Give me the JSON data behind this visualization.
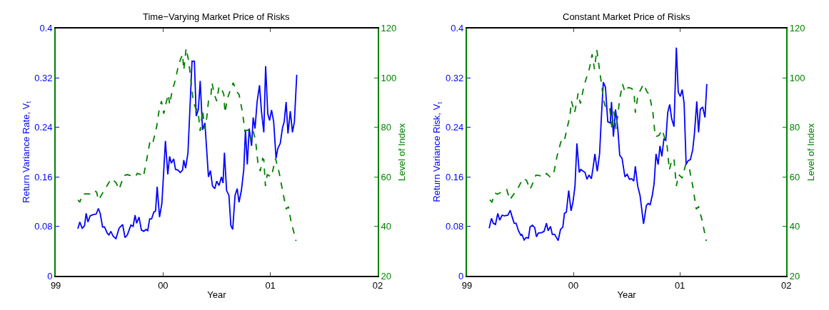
{
  "chart_data": [
    {
      "type": "line",
      "title": "Time−Varying Market Price of Risks",
      "xlabel": "Year",
      "ylabel": "Return Variance Rate, V$_{t}$",
      "y2label": "Level of Index",
      "xlim": [
        1999,
        2002
      ],
      "xticks": [
        {
          "value": 1999,
          "label": "99"
        },
        {
          "value": 2000,
          "label": "00"
        },
        {
          "value": 2001,
          "label": "01"
        },
        {
          "value": 2002,
          "label": "02"
        }
      ],
      "ylim": [
        0,
        0.4
      ],
      "yticks": [
        0,
        0.08,
        0.16,
        0.24,
        0.32,
        0.4
      ],
      "y2lim": [
        20,
        120
      ],
      "y2ticks": [
        20,
        40,
        60,
        80,
        100,
        120
      ],
      "series": [
        {
          "color": "#0000ff",
          "line_style": "solid",
          "x": [
            1999.206,
            1999.224,
            1999.246,
            1999.268,
            1999.283,
            1999.3,
            1999.32,
            1999.349,
            1999.377,
            1999.397,
            1999.414,
            1999.436,
            1999.454,
            1999.48,
            1999.496,
            1999.513,
            1999.535,
            1999.561,
            1999.59,
            1999.623,
            1999.645,
            1999.667,
            1999.7,
            1999.721,
            1999.739,
            1999.754,
            1999.776,
            1999.798,
            1999.82,
            1999.842,
            1999.857,
            1999.875,
            1999.893,
            1999.914,
            1999.93,
            1999.945,
            1999.967,
            1999.989,
            2000.022,
            2000.044,
            2000.061,
            2000.077,
            2000.099,
            2000.116,
            2000.138,
            2000.16,
            2000.182,
            2000.193,
            2000.21,
            2000.232,
            2000.27,
            2000.292,
            2000.309,
            2000.329,
            2000.346,
            2000.368,
            2000.39,
            2000.423,
            2000.441,
            2000.461,
            2000.482,
            2000.5,
            2000.522,
            2000.544,
            2000.559,
            2000.572,
            2000.592,
            2000.614,
            2000.632,
            2000.649,
            2000.671,
            2000.691,
            2000.708,
            2000.73,
            2000.752,
            2000.768,
            2000.785,
            2000.803,
            2000.825,
            2000.84,
            2000.857,
            2000.877,
            2000.899,
            2000.917,
            2000.939,
            2000.956,
            2000.976,
            2000.993,
            2001.011,
            2001.031,
            2001.053,
            2001.07,
            2001.092,
            2001.114,
            2001.129,
            2001.147,
            2001.164,
            2001.186,
            2001.206,
            2001.224,
            2001.246
          ],
          "values": [
            0.076,
            0.087,
            0.077,
            0.081,
            0.101,
            0.087,
            0.097,
            0.099,
            0.1,
            0.109,
            0.101,
            0.079,
            0.079,
            0.069,
            0.066,
            0.072,
            0.064,
            0.06,
            0.077,
            0.083,
            0.062,
            0.066,
            0.082,
            0.08,
            0.098,
            0.085,
            0.095,
            0.074,
            0.072,
            0.075,
            0.073,
            0.092,
            0.092,
            0.103,
            0.105,
            0.144,
            0.095,
            0.117,
            0.218,
            0.164,
            0.193,
            0.182,
            0.189,
            0.172,
            0.171,
            0.167,
            0.171,
            0.187,
            0.174,
            0.199,
            0.347,
            0.347,
            0.258,
            0.269,
            0.315,
            0.236,
            0.247,
            0.16,
            0.17,
            0.145,
            0.141,
            0.153,
            0.146,
            0.16,
            0.15,
            0.199,
            0.138,
            0.13,
            0.081,
            0.075,
            0.13,
            0.141,
            0.119,
            0.138,
            0.171,
            0.236,
            0.18,
            0.238,
            0.21,
            0.256,
            0.238,
            0.282,
            0.308,
            0.266,
            0.232,
            0.339,
            0.262,
            0.251,
            0.268,
            0.249,
            0.19,
            0.206,
            0.214,
            0.24,
            0.249,
            0.281,
            0.23,
            0.266,
            0.232,
            0.249,
            0.325
          ]
        },
        {
          "color": "#008000",
          "line_style": "dashed",
          "axis": "y2",
          "x": [
            1999.206,
            1999.224,
            1999.25,
            1999.272,
            1999.316,
            1999.36,
            1999.382,
            1999.397,
            1999.425,
            1999.469,
            1999.518,
            1999.561,
            1999.59,
            1999.634,
            1999.667,
            1999.7,
            1999.743,
            1999.759,
            1999.798,
            1999.816,
            1999.842,
            1999.882,
            1999.908,
            1999.941,
            1999.963,
            1999.985,
            2000.007,
            2000.029,
            2000.05,
            2000.061,
            2000.083,
            2000.116,
            2000.138,
            2000.16,
            2000.182,
            2000.193,
            2000.215,
            2000.237,
            2000.254,
            2000.281,
            2000.303,
            2000.325,
            2000.346,
            2000.368,
            2000.39,
            2000.408,
            2000.423,
            2000.445,
            2000.456,
            2000.478,
            2000.5,
            2000.522,
            2000.544,
            2000.566,
            2000.577,
            2000.599,
            2000.621,
            2000.654,
            2000.686,
            2000.708,
            2000.741,
            2000.763,
            2000.796,
            2000.818,
            2000.84,
            2000.862,
            2000.884,
            2000.906,
            2000.928,
            2000.939,
            2000.954,
            2000.971,
            2001.009,
            2001.048,
            2001.081,
            2001.114,
            2001.147,
            2001.169,
            2001.191,
            2001.239
          ],
          "values": [
            50.7,
            49.8,
            53.1,
            53.1,
            53.1,
            54.6,
            53.7,
            50.6,
            52.6,
            55.8,
            59.3,
            57.7,
            54.9,
            60.5,
            60.9,
            60.5,
            60.0,
            61.4,
            60.9,
            60.0,
            65.6,
            75.3,
            74.4,
            80.4,
            86.9,
            90.6,
            85.5,
            90.1,
            93.3,
            89.2,
            94.3,
            99.4,
            104.0,
            107.2,
            109.5,
            103.1,
            111.9,
            107.2,
            101.2,
            90.6,
            87.8,
            86.9,
            78.5,
            86.9,
            79.4,
            84.1,
            90.6,
            92.4,
            98.0,
            93.3,
            90.6,
            96.6,
            95.7,
            93.3,
            85.9,
            91.5,
            94.3,
            98.0,
            94.3,
            93.3,
            85.9,
            78.5,
            79.0,
            74.8,
            78.5,
            74.8,
            65.6,
            62.3,
            67.4,
            67.0,
            56.3,
            60.9,
            60.0,
            67.4,
            61.9,
            54.4,
            47.0,
            47.9,
            42.4,
            34.1
          ]
        }
      ]
    },
    {
      "type": "line",
      "title": "Constant Market Price of Risks",
      "xlabel": "Year",
      "ylabel": "Return Variance Risk, V$_{t}$",
      "y2label": "Level of Index",
      "xlim": [
        1999,
        2002
      ],
      "xticks": [
        {
          "value": 1999,
          "label": "99"
        },
        {
          "value": 2000,
          "label": "00"
        },
        {
          "value": 2001,
          "label": "01"
        },
        {
          "value": 2002,
          "label": "02"
        }
      ],
      "ylim": [
        0,
        0.4
      ],
      "yticks": [
        0,
        0.08,
        0.16,
        0.24,
        0.32,
        0.4
      ],
      "y2lim": [
        20,
        120
      ],
      "y2ticks": [
        20,
        40,
        60,
        80,
        100,
        120
      ],
      "series": [
        {
          "color": "#0000ff",
          "line_style": "solid",
          "x": [
            1999.209,
            1999.231,
            1999.248,
            1999.268,
            1999.29,
            1999.308,
            1999.33,
            1999.352,
            1999.385,
            1999.407,
            1999.422,
            1999.444,
            1999.462,
            1999.484,
            1999.505,
            1999.516,
            1999.538,
            1999.556,
            1999.578,
            1999.593,
            1999.615,
            1999.637,
            1999.653,
            1999.67,
            1999.703,
            1999.725,
            1999.747,
            1999.763,
            1999.785,
            1999.802,
            1999.824,
            1999.857,
            1999.879,
            1999.901,
            1999.916,
            1999.934,
            1999.956,
            1999.978,
            1999.996,
            2000.015,
            2000.033,
            2000.055,
            2000.07,
            2000.092,
            2000.11,
            2000.127,
            2000.147,
            2000.169,
            2000.187,
            2000.202,
            2000.224,
            2000.246,
            2000.264,
            2000.281,
            2000.301,
            2000.323,
            2000.347,
            2000.358,
            2000.376,
            2000.396,
            2000.418,
            2000.435,
            2000.457,
            2000.484,
            2000.505,
            2000.527,
            2000.549,
            2000.567,
            2000.582,
            2000.604,
            2000.626,
            2000.659,
            2000.686,
            2000.703,
            2000.721,
            2000.741,
            2000.758,
            2000.776,
            2000.796,
            2000.813,
            2000.831,
            2000.85,
            2000.868,
            2000.886,
            2000.905,
            2000.923,
            2000.945,
            2000.967,
            2000.985,
            2001.004,
            2001.022,
            2001.04,
            2001.059,
            2001.077,
            2001.099,
            2001.121,
            2001.137,
            2001.159,
            2001.176,
            2001.192,
            2001.214,
            2001.236,
            2001.253
          ],
          "values": [
            0.077,
            0.093,
            0.085,
            0.083,
            0.101,
            0.09,
            0.098,
            0.097,
            0.098,
            0.106,
            0.097,
            0.085,
            0.085,
            0.073,
            0.066,
            0.067,
            0.058,
            0.062,
            0.061,
            0.079,
            0.082,
            0.078,
            0.063,
            0.069,
            0.07,
            0.072,
            0.085,
            0.073,
            0.08,
            0.067,
            0.067,
            0.057,
            0.075,
            0.079,
            0.101,
            0.103,
            0.138,
            0.105,
            0.119,
            0.145,
            0.214,
            0.167,
            0.172,
            0.169,
            0.167,
            0.156,
            0.163,
            0.157,
            0.177,
            0.197,
            0.169,
            0.197,
            0.26,
            0.313,
            0.305,
            0.249,
            0.247,
            0.281,
            0.225,
            0.269,
            0.236,
            0.195,
            0.19,
            0.16,
            0.164,
            0.156,
            0.157,
            0.153,
            0.177,
            0.145,
            0.13,
            0.084,
            0.114,
            0.117,
            0.115,
            0.13,
            0.149,
            0.197,
            0.18,
            0.21,
            0.193,
            0.221,
            0.219,
            0.264,
            0.277,
            0.254,
            0.241,
            0.369,
            0.297,
            0.29,
            0.301,
            0.279,
            0.18,
            0.186,
            0.188,
            0.204,
            0.23,
            0.282,
            0.232,
            0.269,
            0.273,
            0.256,
            0.31
          ]
        },
        {
          "color": "#008000",
          "line_style": "dashed",
          "axis": "y2",
          "x": [
            1999.215,
            1999.235,
            1999.264,
            1999.286,
            1999.33,
            1999.374,
            1999.402,
            1999.44,
            1999.484,
            1999.527,
            1999.56,
            1999.593,
            1999.626,
            1999.648,
            1999.681,
            1999.725,
            1999.747,
            1999.78,
            1999.813,
            1999.846,
            1999.89,
            1999.916,
            1999.945,
            1999.967,
            1999.982,
            2000.011,
            2000.033,
            2000.044,
            2000.066,
            2000.099,
            2000.121,
            2000.149,
            2000.176,
            2000.198,
            2000.22,
            2000.242,
            2000.264,
            2000.286,
            2000.308,
            2000.341,
            2000.363,
            2000.38,
            2000.4,
            2000.418,
            2000.435,
            2000.462,
            2000.484,
            2000.516,
            2000.549,
            2000.571,
            2000.582,
            2000.604,
            2000.626,
            2000.659,
            2000.692,
            2000.714,
            2000.747,
            2000.769,
            2000.802,
            2000.835,
            2000.857,
            2000.879,
            2000.901,
            2000.923,
            2000.945,
            2000.967,
            2000.989,
            2001.022,
            2001.055,
            2001.088,
            2001.121,
            2001.154,
            2001.176,
            2001.209,
            2001.248
          ],
          "values": [
            50.7,
            49.8,
            53.5,
            53.0,
            54.0,
            54.9,
            50.7,
            53.0,
            55.8,
            59.4,
            58.6,
            54.9,
            58.1,
            60.7,
            60.5,
            60.0,
            61.4,
            60.0,
            60.9,
            68.3,
            75.3,
            74.8,
            80.4,
            84.5,
            90.6,
            85.9,
            90.6,
            93.8,
            89.6,
            96.6,
            99.8,
            103.5,
            109.5,
            103.5,
            111.4,
            104.4,
            97.5,
            90.6,
            87.3,
            87.8,
            79.0,
            86.4,
            79.4,
            85.0,
            91.5,
            97.5,
            94.3,
            96.1,
            95.7,
            93.3,
            85.9,
            92.4,
            94.7,
            97.5,
            94.3,
            93.3,
            85.9,
            76.2,
            76.7,
            79.0,
            75.7,
            73.0,
            62.8,
            66.5,
            67.4,
            56.3,
            60.9,
            59.5,
            65.1,
            63.7,
            56.3,
            47.0,
            47.9,
            42.4,
            34.1
          ]
        }
      ]
    }
  ]
}
